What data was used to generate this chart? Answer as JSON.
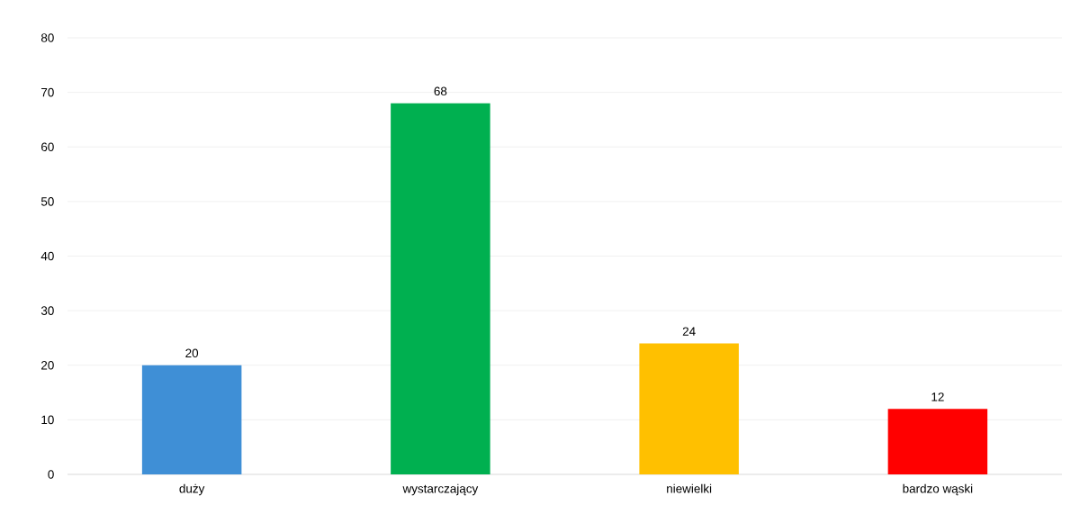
{
  "chart_data": {
    "type": "bar",
    "categories": [
      "duży",
      "wystarczający",
      "niewielki",
      "bardzo wąski"
    ],
    "values": [
      20,
      68,
      24,
      12
    ],
    "colors": [
      "#3f8fd6",
      "#00b050",
      "#ffc000",
      "#ff0000"
    ],
    "ylim": [
      0,
      80
    ],
    "yticks": [
      0,
      10,
      20,
      30,
      40,
      50,
      60,
      70,
      80
    ],
    "grid": "y",
    "data_labels": true
  }
}
